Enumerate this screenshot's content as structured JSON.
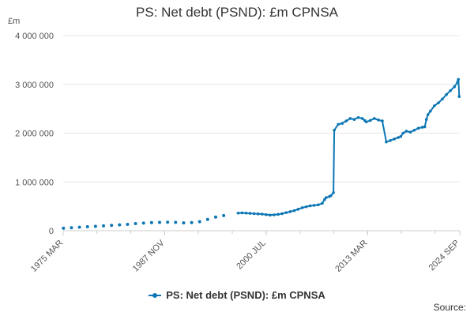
{
  "chart_data": {
    "type": "line",
    "title": "PS: Net debt (PSND): £m CPNSA",
    "ylabel": "£m",
    "xlabel": "",
    "ylim": [
      0,
      4000000
    ],
    "yticks": [
      0,
      1000000,
      2000000,
      3000000,
      4000000
    ],
    "ytick_labels": [
      "0",
      "1 000 000",
      "2 000 000",
      "3 000 000",
      "4 000 000"
    ],
    "xlim": [
      1975.17,
      2024.67
    ],
    "xticks": [
      1975.17,
      1987.84,
      2000.5,
      2013.17,
      2024.67
    ],
    "xtick_labels": [
      "1975 MAR",
      "1987 NOV",
      "2000 JUL",
      "2013 MAR",
      "2024 SEP"
    ],
    "grid": true,
    "legend_position": "bottom",
    "series": [
      {
        "name": "PS: Net debt (PSND): £m CPNSA",
        "color": "#0d77b5",
        "annual_points": {
          "x": [
            1975.2,
            1976.2,
            1977.2,
            1978.2,
            1979.2,
            1980.2,
            1981.2,
            1982.2,
            1983.2,
            1984.2,
            1985.2,
            1986.2,
            1987.2,
            1988.2,
            1989.2,
            1990.2,
            1991.2,
            1992.2,
            1993.2,
            1994.2,
            1995.2
          ],
          "y": [
            50000,
            60000,
            70000,
            80000,
            90000,
            100000,
            110000,
            120000,
            130000,
            145000,
            155000,
            165000,
            170000,
            175000,
            170000,
            160000,
            165000,
            185000,
            230000,
            280000,
            310000
          ]
        },
        "monthly_points": {
          "x": [
            1997.0,
            1997.5,
            1998.0,
            1998.5,
            1999.0,
            1999.5,
            2000.0,
            2000.5,
            2001.0,
            2001.5,
            2002.0,
            2002.5,
            2003.0,
            2003.5,
            2004.0,
            2004.5,
            2005.0,
            2005.5,
            2006.0,
            2006.5,
            2007.0,
            2007.5,
            2007.8,
            2008.0,
            2008.4,
            2008.6,
            2008.9,
            2009.0,
            2009.5,
            2010.0,
            2010.5,
            2011.0,
            2011.5,
            2012.0,
            2012.5,
            2012.8,
            2013.0,
            2013.5,
            2014.0,
            2014.5,
            2015.0,
            2015.5,
            2016.0,
            2016.5,
            2017.0,
            2017.3,
            2017.6,
            2018.0,
            2018.5,
            2019.0,
            2019.5,
            2020.0,
            2020.3,
            2020.5,
            2020.7,
            2021.0,
            2021.5,
            2022.0,
            2022.5,
            2023.0,
            2023.5,
            2024.0,
            2024.4,
            2024.5,
            2024.6
          ],
          "y": [
            360000,
            365000,
            360000,
            355000,
            350000,
            345000,
            340000,
            330000,
            320000,
            325000,
            335000,
            350000,
            370000,
            390000,
            410000,
            440000,
            470000,
            490000,
            510000,
            520000,
            530000,
            560000,
            640000,
            680000,
            700000,
            720000,
            780000,
            2060000,
            2180000,
            2200000,
            2250000,
            2300000,
            2280000,
            2320000,
            2300000,
            2260000,
            2230000,
            2260000,
            2300000,
            2270000,
            2250000,
            1820000,
            1850000,
            1880000,
            1910000,
            1930000,
            2000000,
            2040000,
            2020000,
            2060000,
            2100000,
            2120000,
            2130000,
            2280000,
            2380000,
            2450000,
            2560000,
            2620000,
            2700000,
            2790000,
            2870000,
            2950000,
            3050000,
            3100000,
            2750000
          ]
        }
      }
    ],
    "legend_label": "PS: Net debt (PSND): £m CPNSA",
    "source_label": "Source:"
  }
}
